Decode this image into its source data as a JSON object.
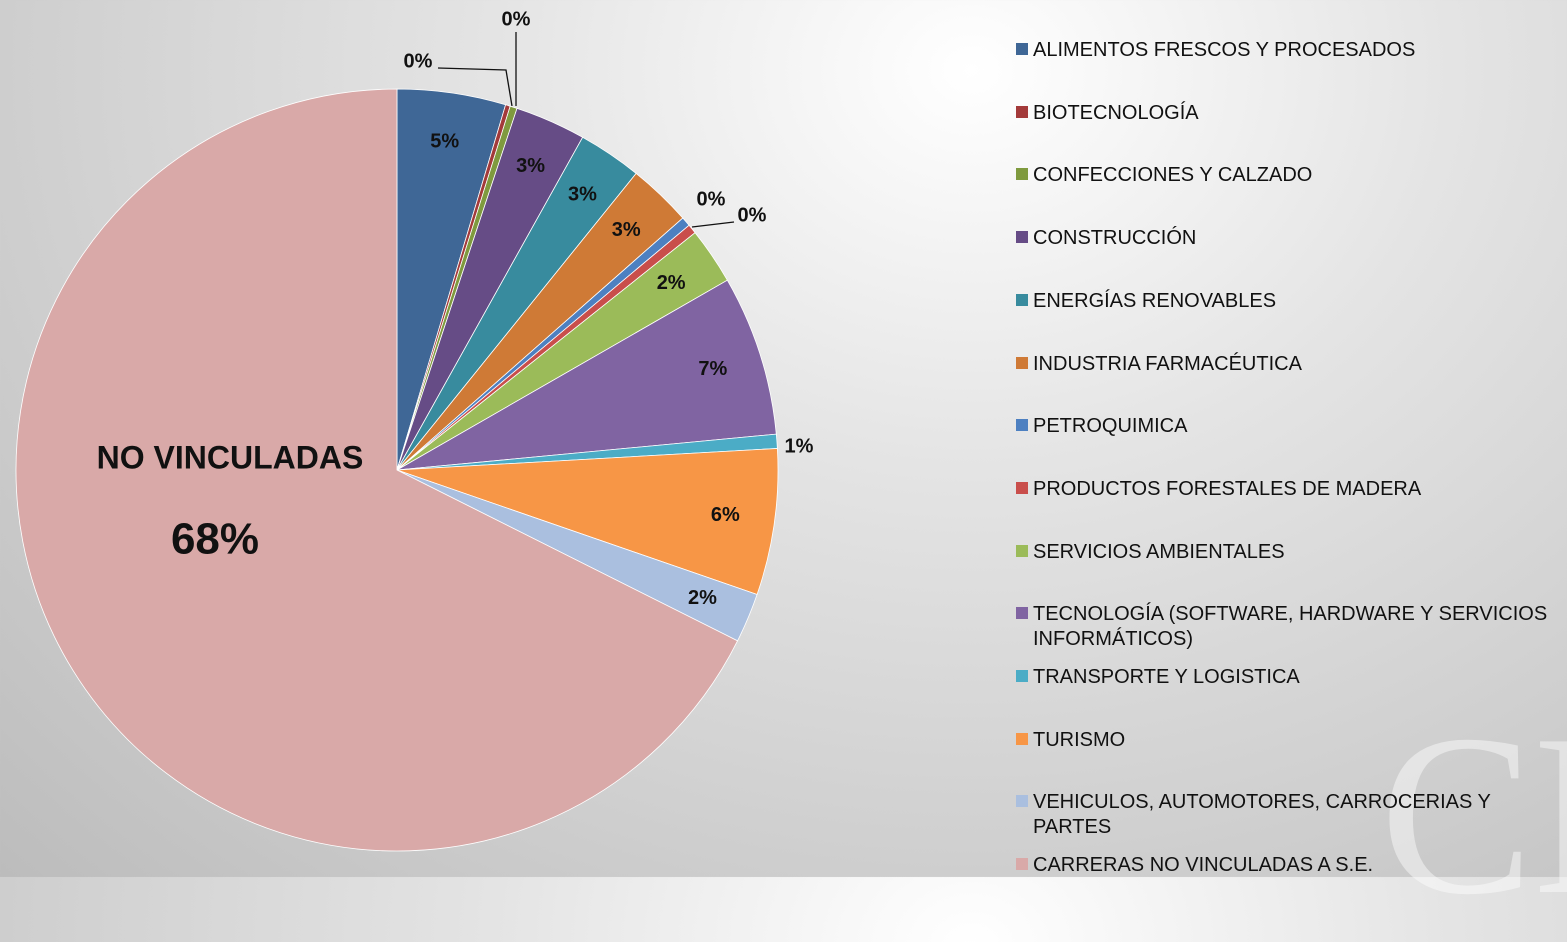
{
  "chart_data": {
    "type": "pie",
    "categories": [
      "ALIMENTOS FRESCOS Y PROCESADOS",
      "BIOTECNOLOGÍA",
      "CONFECCIONES Y CALZADO",
      "CONSTRUCCIÓN",
      "ENERGÍAS RENOVABLES",
      "INDUSTRIA FARMACÉUTICA",
      "PETROQUIMICA",
      "PRODUCTOS FORESTALES DE MADERA",
      "SERVICIOS AMBIENTALES",
      "TECNOLOGÍA (SOFTWARE, HARDWARE Y SERVICIOS INFORMÁTICOS)",
      "TRANSPORTE Y LOGISTICA",
      "TURISMO",
      "VEHICULOS, AUTOMOTORES, CARROCERIAS Y PARTES",
      "CARRERAS NO VINCULADAS A S.E."
    ],
    "values": [
      4.6,
      0.2,
      0.3,
      3.0,
      2.7,
      2.7,
      0.4,
      0.4,
      2.4,
      6.8,
      0.6,
      6.2,
      2.1,
      67.6
    ],
    "value_labels": [
      "5%",
      "0%",
      "0%",
      "3%",
      "3%",
      "3%",
      "0%",
      "0%",
      "2%",
      "7%",
      "1%",
      "6%",
      "2%",
      "68%"
    ],
    "colors": [
      "#3f6796",
      "#a33a3a",
      "#7f9a3e",
      "#664c86",
      "#388b9e",
      "#cf7a36",
      "#4d80c1",
      "#c94e4b",
      "#9bbb59",
      "#8064a2",
      "#4bacc6",
      "#f79646",
      "#aabfdf",
      "#d9a9a8"
    ],
    "slice_label": "NO VINCULADAS",
    "watermark": "CE",
    "legend": "right"
  }
}
